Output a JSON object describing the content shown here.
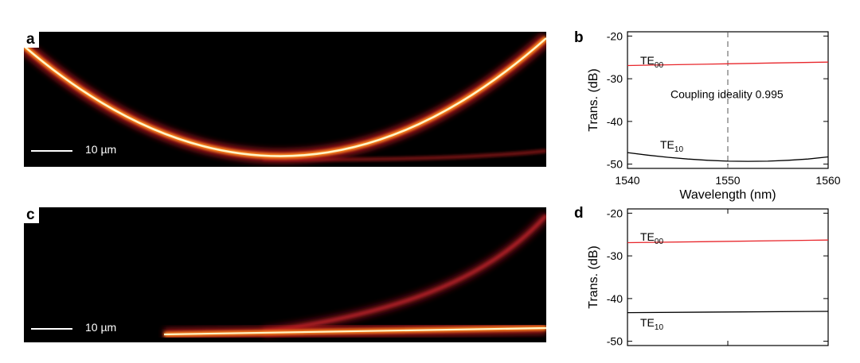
{
  "panels": {
    "a": {
      "label": "a",
      "scale_bar": "10 µm"
    },
    "c": {
      "label": "c",
      "scale_bar": "10 µm"
    },
    "b": {
      "label": "b"
    },
    "d": {
      "label": "d"
    }
  },
  "colors": {
    "te00": "#e8262b",
    "te10": "#000000",
    "dashed": "#555555"
  },
  "chart_data": [
    {
      "id": "b",
      "type": "line",
      "xlabel": "Wavelength (nm)",
      "ylabel": "Trans. (dB)",
      "xlim": [
        1540,
        1560
      ],
      "ylim": [
        -51,
        -19
      ],
      "xticks": [
        1540,
        1550,
        1560
      ],
      "xtick_labels": [
        "1540",
        "1550",
        "1560"
      ],
      "yticks": [
        -20,
        -30,
        -40,
        -50
      ],
      "ytick_labels": [
        "-20",
        "-30",
        "-40",
        "-50"
      ],
      "annotation": "Coupling ideality 0.995",
      "vline": 1550,
      "series": [
        {
          "name": "TE00",
          "label_main": "TE",
          "label_sub": "00",
          "color": "#e8262b",
          "x": [
            1540,
            1545,
            1550,
            1555,
            1560
          ],
          "y": [
            -26.9,
            -26.7,
            -26.5,
            -26.3,
            -26.1
          ]
        },
        {
          "name": "TE10",
          "label_main": "TE",
          "label_sub": "10",
          "color": "#000000",
          "x": [
            1540,
            1542,
            1544,
            1546,
            1548,
            1550,
            1552,
            1554,
            1556,
            1558,
            1560
          ],
          "y": [
            -47.3,
            -47.9,
            -48.4,
            -48.8,
            -49.1,
            -49.3,
            -49.35,
            -49.3,
            -49.1,
            -48.8,
            -48.3
          ]
        }
      ]
    },
    {
      "id": "d",
      "type": "line",
      "xlabel": "",
      "ylabel": "Trans. (dB)",
      "xlim": [
        1540,
        1560
      ],
      "ylim": [
        -51,
        -19
      ],
      "xticks": [
        1540,
        1550,
        1560
      ],
      "xtick_labels": [
        "",
        "",
        ""
      ],
      "yticks": [
        -20,
        -30,
        -40,
        -50
      ],
      "ytick_labels": [
        "-20",
        "-30",
        "-40",
        "-50"
      ],
      "annotation": "",
      "vline": null,
      "series": [
        {
          "name": "TE00",
          "label_main": "TE",
          "label_sub": "00",
          "color": "#e8262b",
          "x": [
            1540,
            1560
          ],
          "y": [
            -26.9,
            -26.3
          ]
        },
        {
          "name": "TE10",
          "label_main": "TE",
          "label_sub": "10",
          "color": "#000000",
          "x": [
            1540,
            1560
          ],
          "y": [
            -43.3,
            -43.0
          ]
        }
      ]
    }
  ]
}
